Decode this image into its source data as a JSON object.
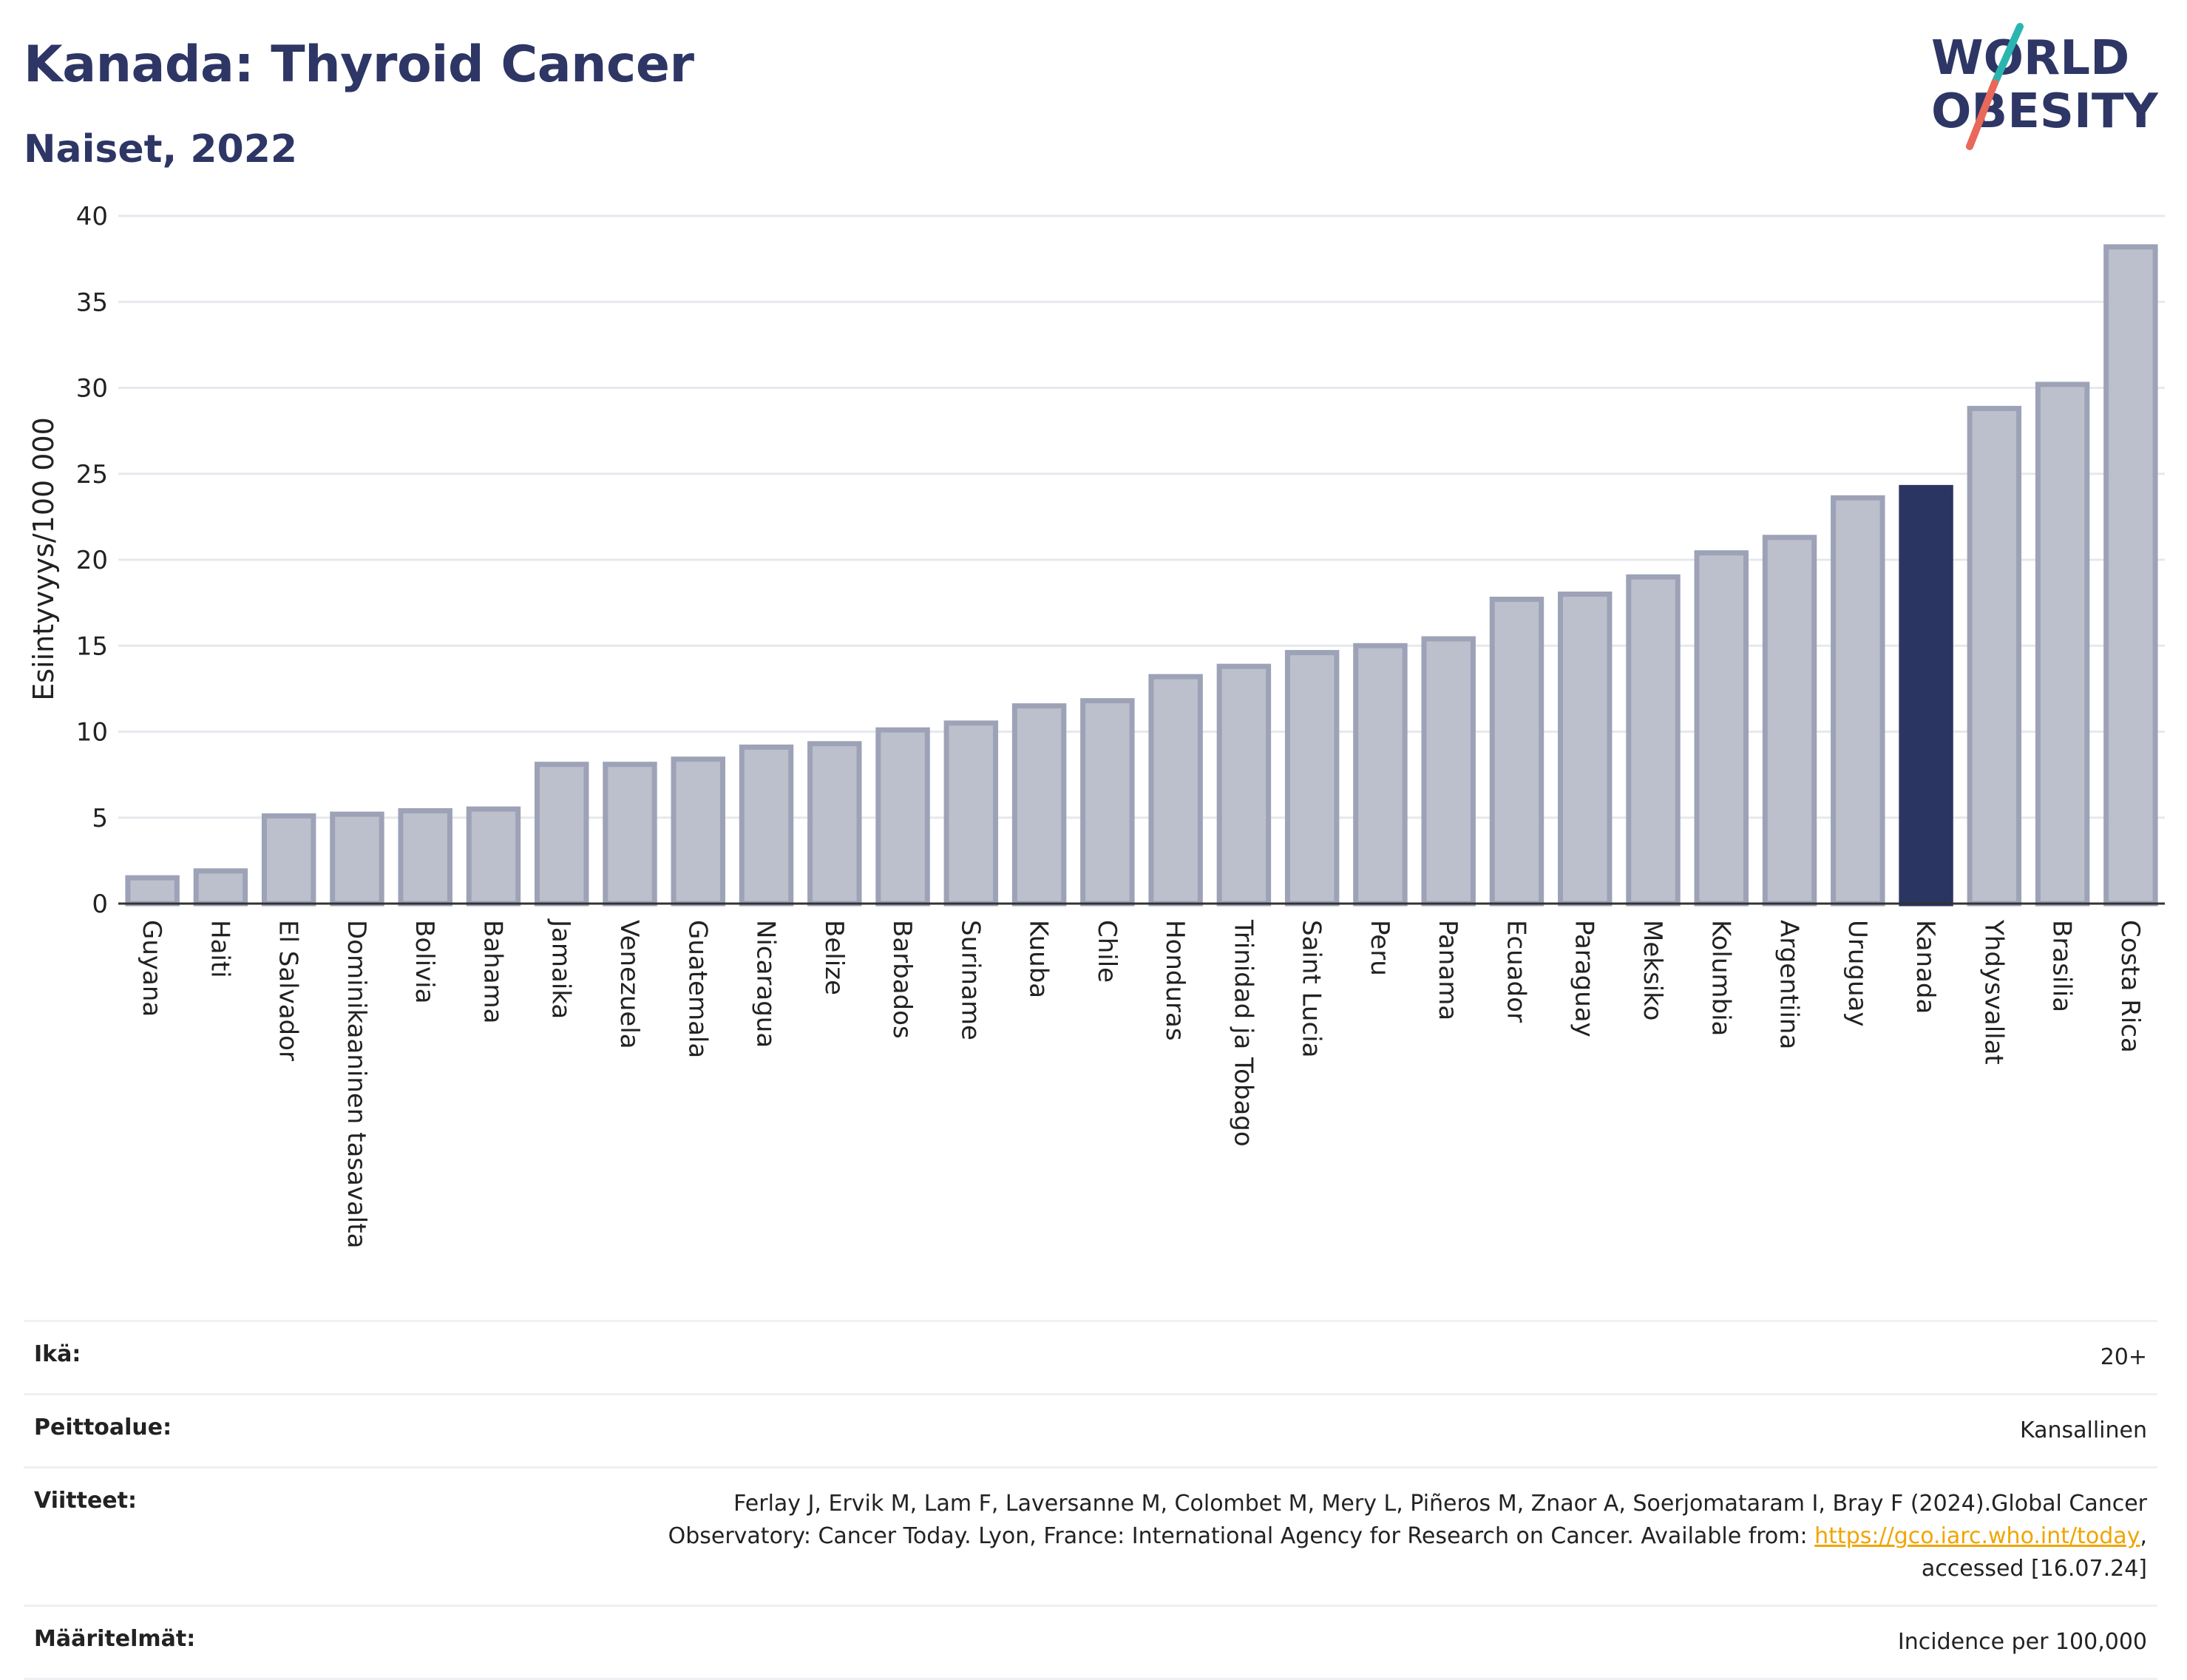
{
  "header": {
    "title": "Kanada: Thyroid Cancer",
    "subtitle": "Naiset, 2022"
  },
  "logo": {
    "line1": "WORLD",
    "line2": "OBESITY",
    "colors": {
      "text": "#2d3665",
      "slash_top": "#2bb5b0",
      "slash_bottom": "#e8685a"
    }
  },
  "chart_data": {
    "type": "bar",
    "ylabel": "Esiintyvyys/100 000",
    "ylim": [
      0,
      40
    ],
    "yticks": [
      0,
      5,
      10,
      15,
      20,
      25,
      30,
      35,
      40
    ],
    "grid": true,
    "highlight": "Kanada",
    "colors": {
      "bar": "#bcc0cd",
      "bar_stroke": "#9da2b7",
      "highlight": "#2b3562"
    },
    "categories": [
      "Guyana",
      "Haiti",
      "El Salvador",
      "Dominikaaninen tasavalta",
      "Bolivia",
      "Bahama",
      "Jamaika",
      "Venezuela",
      "Guatemala",
      "Nicaragua",
      "Belize",
      "Barbados",
      "Suriname",
      "Kuuba",
      "Chile",
      "Honduras",
      "Trinidad ja Tobago",
      "Saint Lucia",
      "Peru",
      "Panama",
      "Ecuador",
      "Paraguay",
      "Meksiko",
      "Kolumbia",
      "Argentiina",
      "Uruguay",
      "Kanada",
      "Yhdysvallat",
      "Brasilia",
      "Costa Rica"
    ],
    "values": [
      1.5,
      1.9,
      5.1,
      5.2,
      5.4,
      5.5,
      8.1,
      8.1,
      8.4,
      9.1,
      9.3,
      10.1,
      10.5,
      11.5,
      11.8,
      13.2,
      13.8,
      14.6,
      15.0,
      15.4,
      17.7,
      18.0,
      19.0,
      20.4,
      21.3,
      23.6,
      24.2,
      28.8,
      30.2,
      38.2
    ]
  },
  "meta": {
    "age": {
      "label": "Ikä:",
      "value": "20+"
    },
    "coverage": {
      "label": "Peittoalue:",
      "value": "Kansallinen"
    },
    "references": {
      "label": "Viitteet:",
      "line1": "Ferlay J, Ervik M, Lam F, Laversanne M, Colombet M, Mery L, Piñeros M, Znaor A, Soerjomataram I, Bray F (2024).Global Cancer",
      "line2_pre": "Observatory: Cancer Today. Lyon, France: International Agency for Research on Cancer. Available from: ",
      "link": "https://gco.iarc.who.int/today",
      "line2_post": ",",
      "line3": "accessed [16.07.24]"
    },
    "definitions": {
      "label": "Määritelmät:",
      "value": "Incidence per 100,000"
    }
  }
}
